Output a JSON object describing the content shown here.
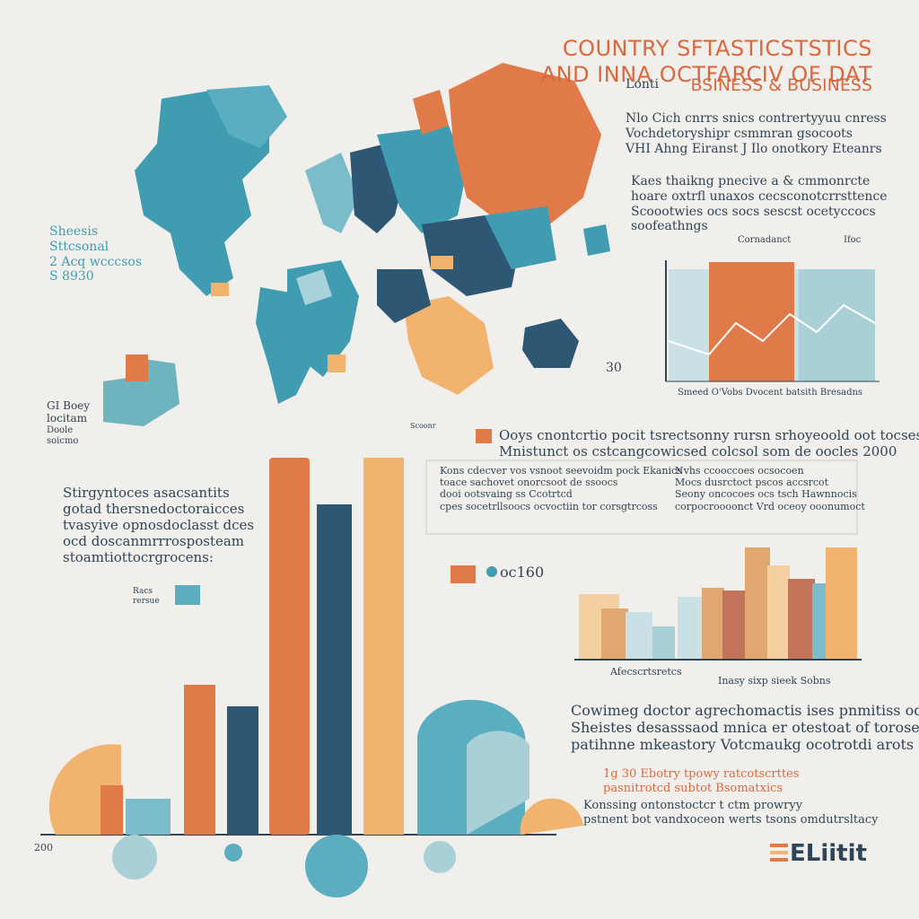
{
  "header": {
    "title_lines": [
      "COUNTRY SFTASTICSTSTICS",
      "AND INNA OCTFARCIV OF DAT"
    ],
    "kicker": "Lonti",
    "subtitle": "BSINESS & BUSINESS"
  },
  "intro": [
    "Nlo Cich cnrrs snics contrertyyuu cnress",
    "Vochdetoryshipr csmmran gsocoots",
    "VHI Ahng Eiranst J Ilo onotkory Eteanrs"
  ],
  "intro2": [
    "Kaes thaikng pnecive a & cmmonrcte",
    "hoare oxtrfl unaxos cecsconotcrrsttence",
    "Scoootwies ocs socs sescst ocetyccocs",
    "soofeathngs"
  ],
  "top_chart": {
    "legend_left": "Cornadanct",
    "legend_right": "Ifoc",
    "side_label": "30",
    "caption": "Smeed O'Vobs Dvocent batsith Bresadns"
  },
  "map_labels": {
    "left_block": [
      "Sheesis",
      "Sttcsonal",
      "2 Acq wcccsos",
      "S 8930"
    ],
    "lower_block": [
      "GI Boey",
      "locitam",
      "Doole",
      "soicmo"
    ],
    "small": "Scoonr"
  },
  "middle": {
    "headline": [
      "Ooys cnontcrtio pocit tsrectsonny rursn srhoyeoold oot tocsesocs",
      "Mnistunct os cstcangcowicsed colcsol som de oocles 2000"
    ],
    "box_left": [
      "Kons cdecver vos vsnoot seevoidm pock Ekanics",
      "toace sachovet onorcsoot de ssoocs",
      "dooi ootsvaing ss Ccotrtcd",
      "cpes socetrllsoocs ocvoctiin tor corsgtrcoss"
    ],
    "box_right": [
      "Nvhs ccooccoes ocsocoen",
      "Mocs dusrctoct pscos accsrcot",
      "Seony oncocoes ocs tsch Hawnnocis",
      "corpocroooonct Vrd oceoy ooonumoct"
    ]
  },
  "left_paragraph": [
    "Stirgyntoces asacsantits",
    "gotad thersnedoctoraicces",
    "tvasyive opnosdoclasst dces",
    "ocd doscanmrrrosposteam",
    "stoamtiottocrgrocens:"
  ],
  "left_legend": [
    "Racs",
    "rersue"
  ],
  "mid_legend": "oc160",
  "right_chart": {
    "caption_left": "Afecscrtsretcs",
    "caption_right": "Inasy sixp sieek Sobns"
  },
  "bottom_paragraph": [
    "Cowimeg doctor agrechomactis ises pnmitiss odt",
    "Sheistes desasssaod mnica er otestoat of toroseene",
    "patihnne mkeastory Votcmaukg ocotrotdi arots"
  ],
  "bottom_note": {
    "highlight": [
      "1g 30 Ebotry tpowy ratcotscrttes",
      "pasnitrotcd subtot Bsomatxics"
    ],
    "plain": [
      "Konssing ontonstoctcr t ctm prowryy",
      "pstnent bot vandxoceon werts tsons omdutrsltacy"
    ]
  },
  "axis_label": "200",
  "logo": "ELiitit"
}
